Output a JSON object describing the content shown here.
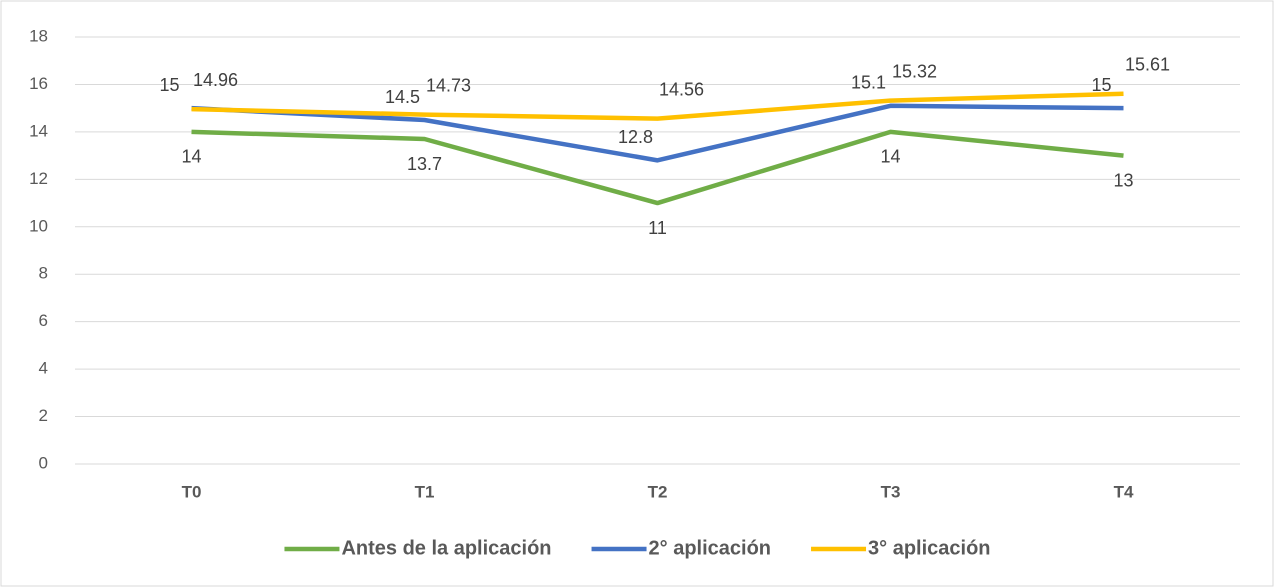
{
  "chart_data": {
    "type": "line",
    "categories": [
      "T0",
      "T1",
      "T2",
      "T3",
      "T4"
    ],
    "series": [
      {
        "name": "Antes de la aplicación",
        "color": "#70ad47",
        "values": [
          14,
          13.7,
          11,
          14,
          13
        ]
      },
      {
        "name": "2° aplicación",
        "color": "#4472c4",
        "values": [
          15,
          14.5,
          12.8,
          15.1,
          15
        ]
      },
      {
        "name": "3° aplicación",
        "color": "#ffc000",
        "values": [
          14.96,
          14.73,
          14.56,
          15.32,
          15.61
        ]
      }
    ],
    "ylim": [
      0,
      18
    ],
    "yticks": [
      0,
      2,
      4,
      6,
      8,
      10,
      12,
      14,
      16,
      18
    ],
    "grid": true,
    "legend": "bottom"
  }
}
